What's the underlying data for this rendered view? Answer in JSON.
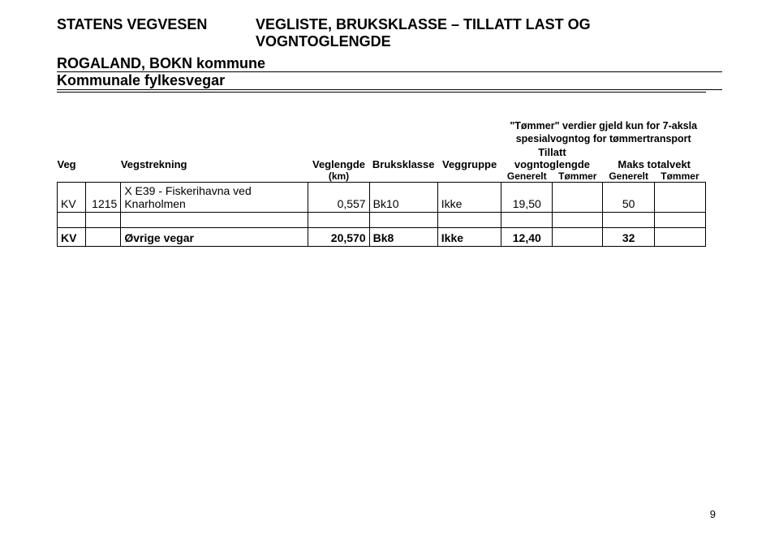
{
  "header": {
    "agency": "STATENS VEGVESEN",
    "title": "VEGLISTE, BRUKSKLASSE – TILLATT LAST OG VOGNTOGLENGDE",
    "region": "ROGALAND, BOKN kommune",
    "subtitle": "Kommunale fylkesvegar"
  },
  "table": {
    "note_line1": "\"Tømmer\" verdier gjeld kun for 7-aksla",
    "note_line2": "spesialvogntog for tømmertransport",
    "headers": {
      "veg": "Veg",
      "vegstrekning": "Vegstrekning",
      "veglengde": "Veglengde",
      "veglengde_unit": "(km)",
      "bruksklasse": "Bruksklasse",
      "veggruppe": "Veggruppe",
      "tillatt": "Tillatt vogntoglengde",
      "maks": "Maks totalvekt",
      "generelt": "Generelt",
      "tommer": "Tømmer"
    },
    "rows": [
      {
        "veg": "KV",
        "nr": "1215",
        "strek": "X E39 - Fiskerihavna ved Knarholmen",
        "len": "0,557",
        "bk": "Bk10",
        "grp": "Ikke",
        "gen1": "19,50",
        "tom1": "",
        "gen2": "50",
        "tom2": "",
        "bold": false
      },
      {
        "veg": "KV",
        "nr": "",
        "strek": "Øvrige vegar",
        "len": "20,570",
        "bk": "Bk8",
        "grp": "Ikke",
        "gen1": "12,40",
        "tom1": "",
        "gen2": "32",
        "tom2": "",
        "bold": true
      }
    ]
  },
  "page_number": "9"
}
